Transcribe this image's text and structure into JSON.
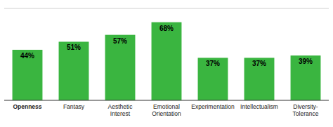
{
  "chart_data": {
    "type": "bar",
    "categories": [
      "Openness",
      "Fantasy",
      "Aesthetic\nInterest",
      "Emotional\nOrientation",
      "Experimentation",
      "Intellectualism",
      "Diversity-\nTolerance"
    ],
    "values": [
      44,
      51,
      57,
      68,
      37,
      37,
      39
    ],
    "value_labels": [
      "44%",
      "51%",
      "57%",
      "68%",
      "37%",
      "37%",
      "39%"
    ],
    "color": "#3ab540",
    "ylim": [
      0,
      80
    ],
    "data_labels": true,
    "tick_labels": "x"
  }
}
